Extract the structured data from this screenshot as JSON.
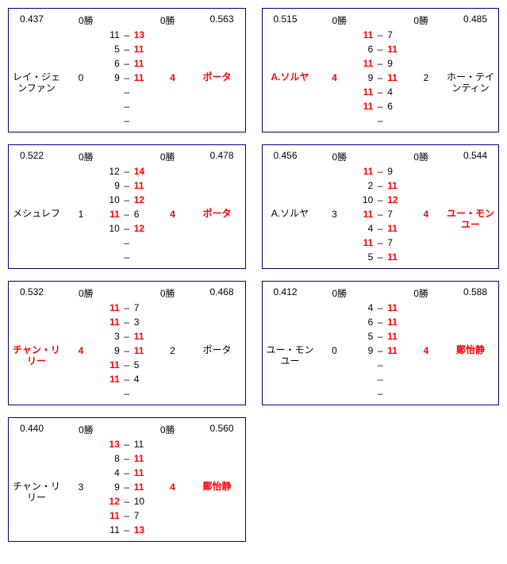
{
  "colors": {
    "border": "#000080",
    "highlight": "#ff0000",
    "text": "#000000",
    "bg": "#ffffff"
  },
  "matches": [
    {
      "oddsL": "0.437",
      "oddsR": "0.563",
      "winsL": "0勝",
      "winsR": "0勝",
      "pL": {
        "name": "レイ・ジェンファン",
        "red": false
      },
      "pR": {
        "name": "ポータ",
        "red": true
      },
      "sL": {
        "v": "0",
        "red": false
      },
      "sR": {
        "v": "4",
        "red": true
      },
      "games": [
        [
          "11",
          "13",
          "R"
        ],
        [
          "5",
          "11",
          "R"
        ],
        [
          "6",
          "11",
          "R"
        ],
        [
          "9",
          "11",
          "R"
        ],
        [
          "",
          "",
          ""
        ],
        [
          "",
          "",
          ""
        ],
        [
          "",
          "",
          ""
        ]
      ]
    },
    {
      "oddsL": "0.515",
      "oddsR": "0.485",
      "winsL": "0勝",
      "winsR": "0勝",
      "pL": {
        "name": "A.ソルヤ",
        "red": true
      },
      "pR": {
        "name": "ホー・テインティン",
        "red": false
      },
      "sL": {
        "v": "4",
        "red": true
      },
      "sR": {
        "v": "2",
        "red": false
      },
      "games": [
        [
          "11",
          "7",
          "L"
        ],
        [
          "6",
          "11",
          "R"
        ],
        [
          "11",
          "9",
          "L"
        ],
        [
          "9",
          "11",
          "R"
        ],
        [
          "11",
          "4",
          "L"
        ],
        [
          "11",
          "6",
          "L"
        ],
        [
          "",
          "",
          ""
        ]
      ]
    },
    {
      "oddsL": "0.522",
      "oddsR": "0.478",
      "winsL": "0勝",
      "winsR": "0勝",
      "pL": {
        "name": "メシュレフ",
        "red": false
      },
      "pR": {
        "name": "ポータ",
        "red": true
      },
      "sL": {
        "v": "1",
        "red": false
      },
      "sR": {
        "v": "4",
        "red": true
      },
      "games": [
        [
          "12",
          "14",
          "R"
        ],
        [
          "9",
          "11",
          "R"
        ],
        [
          "10",
          "12",
          "R"
        ],
        [
          "11",
          "6",
          "L"
        ],
        [
          "10",
          "12",
          "R"
        ],
        [
          "",
          "",
          ""
        ],
        [
          "",
          "",
          ""
        ]
      ]
    },
    {
      "oddsL": "0.456",
      "oddsR": "0.544",
      "winsL": "0勝",
      "winsR": "0勝",
      "pL": {
        "name": "A.ソルヤ",
        "red": false
      },
      "pR": {
        "name": "ユー・モンユー",
        "red": true
      },
      "sL": {
        "v": "3",
        "red": false
      },
      "sR": {
        "v": "4",
        "red": true
      },
      "games": [
        [
          "11",
          "9",
          "L"
        ],
        [
          "2",
          "11",
          "R"
        ],
        [
          "10",
          "12",
          "R"
        ],
        [
          "11",
          "7",
          "L"
        ],
        [
          "4",
          "11",
          "R"
        ],
        [
          "11",
          "7",
          "L"
        ],
        [
          "5",
          "11",
          "R"
        ]
      ]
    },
    {
      "oddsL": "0.532",
      "oddsR": "0.468",
      "winsL": "0勝",
      "winsR": "0勝",
      "pL": {
        "name": "チャン・リリー",
        "red": true
      },
      "pR": {
        "name": "ポータ",
        "red": false
      },
      "sL": {
        "v": "4",
        "red": true
      },
      "sR": {
        "v": "2",
        "red": false
      },
      "games": [
        [
          "11",
          "7",
          "L"
        ],
        [
          "11",
          "3",
          "L"
        ],
        [
          "3",
          "11",
          "R"
        ],
        [
          "9",
          "11",
          "R"
        ],
        [
          "11",
          "5",
          "L"
        ],
        [
          "11",
          "4",
          "L"
        ],
        [
          "",
          "",
          ""
        ]
      ]
    },
    {
      "oddsL": "0.412",
      "oddsR": "0.588",
      "winsL": "0勝",
      "winsR": "0勝",
      "pL": {
        "name": "ユー・モンユー",
        "red": false
      },
      "pR": {
        "name": "鄭怡静",
        "red": true
      },
      "sL": {
        "v": "0",
        "red": false
      },
      "sR": {
        "v": "4",
        "red": true
      },
      "games": [
        [
          "4",
          "11",
          "R"
        ],
        [
          "6",
          "11",
          "R"
        ],
        [
          "5",
          "11",
          "R"
        ],
        [
          "9",
          "11",
          "R"
        ],
        [
          "",
          "",
          ""
        ],
        [
          "",
          "",
          ""
        ],
        [
          "",
          "",
          ""
        ]
      ]
    },
    {
      "oddsL": "0.440",
      "oddsR": "0.560",
      "winsL": "0勝",
      "winsR": "0勝",
      "pL": {
        "name": "チャン・リリー",
        "red": false
      },
      "pR": {
        "name": "鄭怡静",
        "red": true
      },
      "sL": {
        "v": "3",
        "red": false
      },
      "sR": {
        "v": "4",
        "red": true
      },
      "games": [
        [
          "13",
          "11",
          "L"
        ],
        [
          "8",
          "11",
          "R"
        ],
        [
          "4",
          "11",
          "R"
        ],
        [
          "9",
          "11",
          "R"
        ],
        [
          "12",
          "10",
          "L"
        ],
        [
          "11",
          "7",
          "L"
        ],
        [
          "11",
          "13",
          "R"
        ]
      ]
    }
  ]
}
